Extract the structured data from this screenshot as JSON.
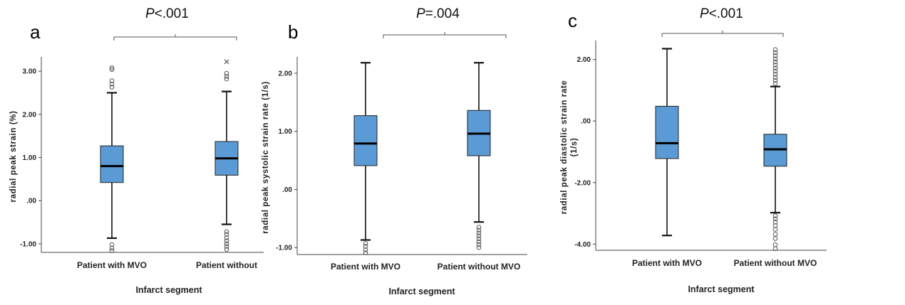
{
  "chart_data": [
    {
      "type": "boxplot",
      "panel_label": "a",
      "p_value": {
        "prefix": "P",
        "rest": "<.001"
      },
      "ylabel": "radial peak strain (%)",
      "xlabel": "Infarct segment",
      "ylim": [
        -1.2,
        3.25
      ],
      "yticks": [
        3.0,
        2.0,
        1.0,
        0.0,
        -1.0
      ],
      "ytick_labels": [
        "3.00",
        "2.00",
        "1.00",
        ".00",
        "-1.00"
      ],
      "categories": [
        "Patient with MVO",
        "Patient without"
      ],
      "boxes": [
        {
          "whisker_low": -0.87,
          "q1": 0.42,
          "median": 0.8,
          "q3": 1.27,
          "whisker_high": 2.5,
          "outliers": [
            3.08,
            3.04,
            2.78,
            2.7,
            2.63,
            -1.02,
            -1.1,
            -1.16
          ],
          "extremes": []
        },
        {
          "whisker_low": -0.55,
          "q1": 0.59,
          "median": 0.98,
          "q3": 1.37,
          "whisker_high": 2.53,
          "outliers": [
            2.95,
            2.88,
            2.82,
            -0.72,
            -0.78,
            -0.86,
            -0.93,
            -1.0,
            -1.06,
            -1.13
          ],
          "extremes": [
            3.22
          ]
        }
      ],
      "color": "#5b9bd5"
    },
    {
      "type": "boxplot",
      "panel_label": "b",
      "p_value": {
        "prefix": "P",
        "rest": "=.004"
      },
      "ylabel": "radial peak systolic strain rate  (1/s)",
      "xlabel": "Infarct segment",
      "ylim": [
        -1.12,
        2.22
      ],
      "yticks": [
        2.0,
        1.0,
        0.0,
        -1.0
      ],
      "ytick_labels": [
        "2.00",
        "1.00",
        ".00",
        "-1.00"
      ],
      "categories": [
        "Patient with MVO",
        "Patient without MVO"
      ],
      "boxes": [
        {
          "whisker_low": -0.87,
          "q1": 0.41,
          "median": 0.79,
          "q3": 1.27,
          "whisker_high": 2.18,
          "outliers": [
            -0.93,
            -0.98,
            -1.04,
            -1.09
          ],
          "extremes": []
        },
        {
          "whisker_low": -0.56,
          "q1": 0.58,
          "median": 0.96,
          "q3": 1.36,
          "whisker_high": 2.18,
          "outliers": [
            -0.65,
            -0.7,
            -0.75,
            -0.8,
            -0.85,
            -0.9,
            -0.95,
            -1.0
          ],
          "extremes": []
        }
      ],
      "color": "#5b9bd5"
    },
    {
      "type": "boxplot",
      "panel_label": "c",
      "p_value": {
        "prefix": "P",
        "rest": "<.001"
      },
      "ylabel": "radial peak diastolic strain rate\n(1/s)",
      "xlabel": "Infarct segment",
      "ylim": [
        -4.2,
        2.5
      ],
      "yticks": [
        2.0,
        0.0,
        -2.0,
        -4.0
      ],
      "ytick_labels": [
        "2.00",
        ".00",
        "-2.00",
        "-4.00"
      ],
      "categories": [
        "Patient with MVO",
        "Patient without MVO"
      ],
      "boxes": [
        {
          "whisker_low": -3.72,
          "q1": -1.22,
          "median": -0.72,
          "q3": 0.48,
          "whisker_high": 2.35,
          "outliers": [],
          "extremes": []
        },
        {
          "whisker_low": -2.98,
          "q1": -1.47,
          "median": -0.92,
          "q3": -0.43,
          "whisker_high": 1.12,
          "outliers": [
            2.32,
            2.22,
            2.12,
            2.02,
            1.92,
            1.82,
            1.72,
            1.62,
            1.52,
            1.42,
            1.32,
            1.22,
            -3.08,
            -3.18,
            -3.28,
            -3.4,
            -3.52,
            -3.68,
            -3.82,
            -4.02,
            -4.15
          ],
          "extremes": []
        }
      ],
      "color": "#5b9bd5"
    }
  ]
}
